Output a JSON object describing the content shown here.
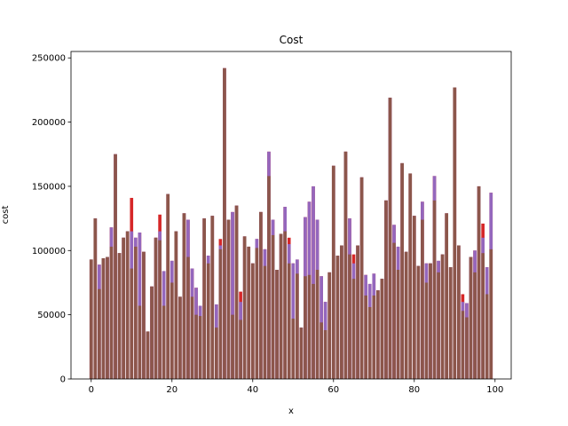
{
  "chart_data": {
    "type": "bar",
    "title": "Cost",
    "xlabel": "x",
    "ylabel": "cost",
    "xlim": [
      -5,
      104
    ],
    "ylim": [
      0,
      255000
    ],
    "xticks": [
      0,
      20,
      40,
      60,
      80,
      100
    ],
    "xtick_labels": [
      "0",
      "20",
      "40",
      "60",
      "80",
      "100"
    ],
    "yticks": [
      0,
      50000,
      100000,
      150000,
      200000,
      250000
    ],
    "ytick_labels": [
      "0",
      "50000",
      "100000",
      "150000",
      "200000",
      "250000"
    ],
    "grid": false,
    "colors": {
      "red": "#d62728",
      "purple": "#9467bd",
      "brown": "#8c564b"
    },
    "series": [
      {
        "color": "red",
        "values": [
          93000,
          125000,
          89000,
          94000,
          95000,
          118000,
          175000,
          98000,
          110000,
          115000,
          141000,
          110000,
          114000,
          99000,
          37000,
          72000,
          110000,
          128000,
          84000,
          144000,
          92000,
          115000,
          64000,
          129000,
          124000,
          86000,
          71000,
          57000,
          125000,
          96000,
          127000,
          58000,
          109000,
          242000,
          124000,
          130000,
          135000,
          68000,
          111000,
          103000,
          90000,
          109000,
          130000,
          101000,
          177000,
          124000,
          85000,
          113000,
          134000,
          110000,
          90000,
          93000,
          40000,
          126000,
          138000,
          150000,
          124000,
          80000,
          60000,
          83000,
          166000,
          96000,
          104000,
          177000,
          125000,
          97000,
          104000,
          157000,
          81000,
          74000,
          82000,
          69000,
          78000,
          139000,
          219000,
          120000,
          103000,
          168000,
          99000,
          160000,
          127000,
          88000,
          138000,
          90000,
          90000,
          158000,
          92000,
          97000,
          129000,
          87000,
          227000,
          104000,
          66000,
          59000,
          95000,
          100000,
          150000,
          121000,
          87000,
          145000
        ]
      },
      {
        "color": "purple",
        "values": [
          93000,
          125000,
          89000,
          94000,
          95000,
          118000,
          175000,
          98000,
          110000,
          115000,
          115000,
          110000,
          114000,
          99000,
          37000,
          72000,
          110000,
          115000,
          84000,
          144000,
          92000,
          115000,
          64000,
          129000,
          124000,
          86000,
          71000,
          57000,
          125000,
          96000,
          127000,
          58000,
          104000,
          242000,
          124000,
          130000,
          135000,
          60000,
          111000,
          103000,
          90000,
          109000,
          130000,
          101000,
          177000,
          124000,
          85000,
          113000,
          134000,
          105000,
          90000,
          93000,
          40000,
          126000,
          138000,
          150000,
          124000,
          80000,
          60000,
          83000,
          166000,
          96000,
          104000,
          177000,
          125000,
          90000,
          104000,
          157000,
          81000,
          74000,
          82000,
          69000,
          78000,
          139000,
          219000,
          120000,
          103000,
          168000,
          99000,
          160000,
          127000,
          88000,
          138000,
          90000,
          90000,
          158000,
          92000,
          97000,
          129000,
          87000,
          227000,
          104000,
          60000,
          59000,
          95000,
          100000,
          150000,
          110000,
          87000,
          145000
        ]
      },
      {
        "color": "brown",
        "values": [
          93000,
          125000,
          70000,
          94000,
          95000,
          103000,
          175000,
          98000,
          110000,
          115000,
          86000,
          103000,
          57000,
          99000,
          37000,
          72000,
          110000,
          108000,
          57000,
          144000,
          75000,
          115000,
          64000,
          129000,
          95000,
          64000,
          50000,
          49000,
          125000,
          90000,
          127000,
          40000,
          101000,
          242000,
          124000,
          50000,
          135000,
          46000,
          111000,
          103000,
          90000,
          102000,
          130000,
          88000,
          158000,
          112000,
          85000,
          113000,
          115000,
          90000,
          47000,
          82000,
          40000,
          80000,
          81000,
          74000,
          85000,
          44000,
          38000,
          83000,
          166000,
          96000,
          104000,
          177000,
          97000,
          78000,
          104000,
          157000,
          65000,
          56000,
          65000,
          69000,
          78000,
          139000,
          219000,
          106000,
          85000,
          168000,
          99000,
          160000,
          127000,
          88000,
          124000,
          75000,
          90000,
          139000,
          83000,
          97000,
          129000,
          87000,
          227000,
          104000,
          53000,
          48000,
          95000,
          83000,
          150000,
          98000,
          66000,
          101000
        ]
      }
    ]
  }
}
